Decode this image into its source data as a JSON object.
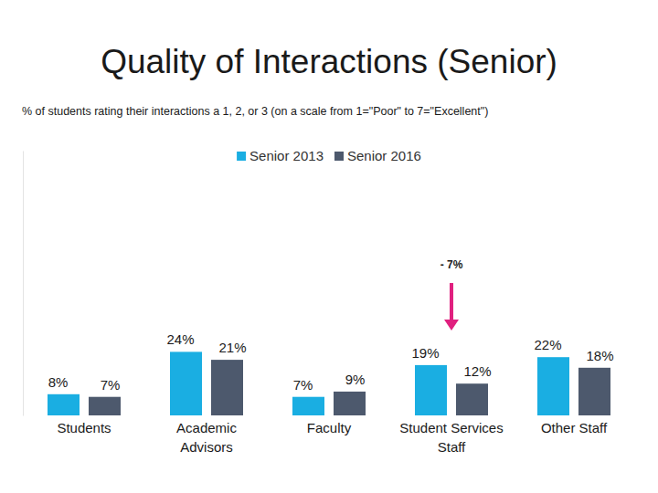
{
  "chart_data": {
    "type": "bar",
    "title": "Quality of Interactions (Senior)",
    "subtitle": "% of students rating their interactions a 1, 2, or 3  (on a scale from 1=\"Poor\" to 7=\"Excellent\")",
    "categories": [
      "Students",
      "Academic Advisors",
      "Faculty",
      "Student Services Staff",
      "Other Staff"
    ],
    "series": [
      {
        "name": "Senior 2013",
        "color": "#1aaee2",
        "values": [
          8,
          24,
          7,
          19,
          22
        ],
        "value_labels": [
          "8%",
          "24%",
          "7%",
          "19%",
          "22%"
        ]
      },
      {
        "name": "Senior 2016",
        "color": "#4d596d",
        "values": [
          7,
          21,
          9,
          12,
          18
        ],
        "value_labels": [
          "7%",
          "21%",
          "9%",
          "12%",
          "18%"
        ]
      }
    ],
    "ylim": [
      0,
      100
    ],
    "tick_labels": "x",
    "data_labels": true,
    "legend": "top",
    "annotations": [
      {
        "text": "- 7%",
        "category": "Student Services Staff"
      }
    ]
  }
}
